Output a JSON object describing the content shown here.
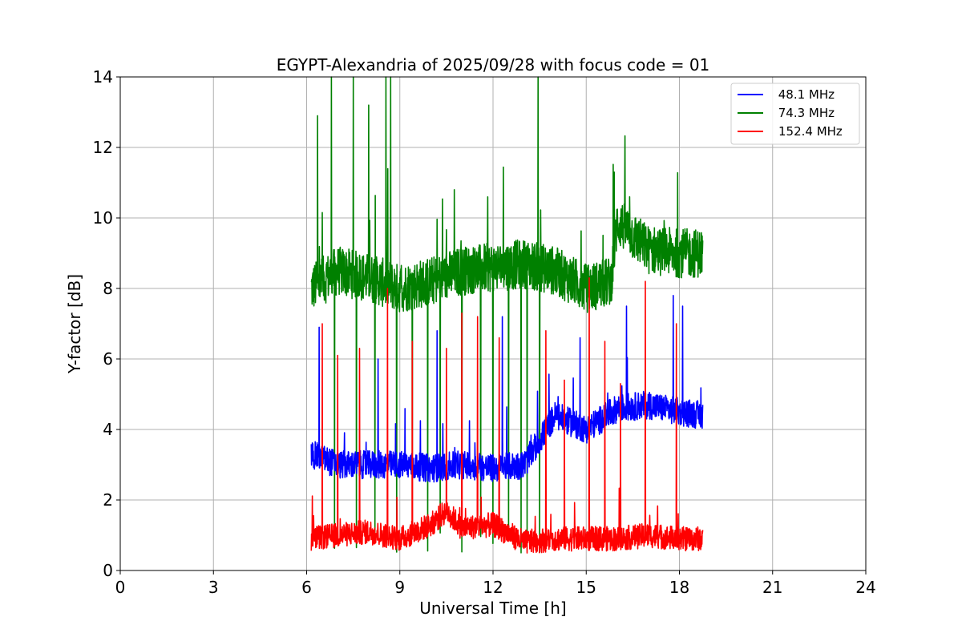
{
  "chart_data": {
    "type": "line",
    "title": "EGYPT-Alexandria of 2025/09/28 with focus code = 01",
    "xlabel": "Universal Time [h]",
    "ylabel": "Y-factor [dB]",
    "xlim": [
      0,
      24
    ],
    "ylim": [
      0,
      14
    ],
    "xticks": [
      0,
      3,
      6,
      9,
      12,
      15,
      18,
      21,
      24
    ],
    "yticks": [
      0,
      2,
      4,
      6,
      8,
      10,
      12,
      14
    ],
    "grid": true,
    "legend_position": "top-right",
    "data_span_hours": [
      6.15,
      18.75
    ],
    "series": [
      {
        "name": " 48.1 MHz",
        "color": "#0000ff",
        "baseline": [
          [
            6.15,
            3.3
          ],
          [
            7.0,
            3.0
          ],
          [
            8.0,
            3.0
          ],
          [
            9.0,
            3.0
          ],
          [
            10.0,
            2.9
          ],
          [
            11.0,
            3.0
          ],
          [
            12.0,
            2.9
          ],
          [
            13.0,
            3.0
          ],
          [
            14.0,
            4.4
          ],
          [
            15.0,
            4.0
          ],
          [
            16.0,
            4.6
          ],
          [
            17.0,
            4.7
          ],
          [
            18.0,
            4.5
          ],
          [
            18.75,
            4.4
          ]
        ],
        "noise": 0.4,
        "spikes": [
          [
            6.4,
            6.9
          ],
          [
            8.3,
            6.0
          ],
          [
            10.2,
            6.8
          ],
          [
            12.3,
            7.2
          ],
          [
            14.8,
            6.6
          ],
          [
            16.3,
            7.5
          ],
          [
            17.8,
            7.8
          ],
          [
            18.1,
            7.5
          ]
        ]
      },
      {
        "name": " 74.3 MHz",
        "color": "#008000",
        "baseline": [
          [
            6.15,
            8.0
          ],
          [
            7.0,
            8.5
          ],
          [
            8.0,
            8.3
          ],
          [
            9.0,
            8.0
          ],
          [
            10.0,
            8.2
          ],
          [
            11.0,
            8.5
          ],
          [
            12.0,
            8.6
          ],
          [
            13.0,
            8.7
          ],
          [
            14.0,
            8.5
          ],
          [
            15.0,
            8.0
          ],
          [
            15.8,
            8.2
          ],
          [
            16.0,
            9.9
          ],
          [
            17.0,
            9.1
          ],
          [
            18.0,
            9.0
          ],
          [
            18.75,
            9.0
          ]
        ],
        "noise": 0.7,
        "spikes": [
          [
            6.35,
            12.9
          ],
          [
            6.8,
            14.0
          ],
          [
            7.5,
            14.0
          ],
          [
            8.0,
            13.2
          ],
          [
            8.2,
            13.5
          ],
          [
            8.55,
            14.0
          ],
          [
            8.7,
            14.0
          ],
          [
            10.75,
            10.8
          ],
          [
            13.45,
            14.0
          ],
          [
            15.9,
            11.3
          ],
          [
            16.4,
            10.6
          ]
        ],
        "dips": [
          6.9,
          7.6,
          8.2,
          8.9,
          9.4,
          9.9,
          10.3,
          11.0,
          11.6,
          12.0,
          12.5,
          12.9,
          13.1,
          13.5
        ]
      },
      {
        "name": "152.4 MHz",
        "color": "#ff0000",
        "baseline": [
          [
            6.15,
            0.9
          ],
          [
            7.0,
            1.0
          ],
          [
            8.0,
            1.1
          ],
          [
            9.0,
            0.9
          ],
          [
            10.0,
            1.3
          ],
          [
            10.5,
            1.7
          ],
          [
            11.0,
            1.2
          ],
          [
            12.0,
            1.3
          ],
          [
            13.0,
            0.8
          ],
          [
            14.0,
            0.9
          ],
          [
            15.0,
            0.9
          ],
          [
            16.0,
            0.9
          ],
          [
            17.0,
            1.0
          ],
          [
            18.0,
            0.9
          ],
          [
            18.75,
            0.9
          ]
        ],
        "noise": 0.35,
        "spikes": [
          [
            6.5,
            7.0
          ],
          [
            7.0,
            6.1
          ],
          [
            7.7,
            6.3
          ],
          [
            8.6,
            8.0
          ],
          [
            9.4,
            6.5
          ],
          [
            10.5,
            6.3
          ],
          [
            11.0,
            7.3
          ],
          [
            11.5,
            7.2
          ],
          [
            12.2,
            6.6
          ],
          [
            13.7,
            6.8
          ],
          [
            14.3,
            5.4
          ],
          [
            15.1,
            8.3
          ],
          [
            15.6,
            6.5
          ],
          [
            16.1,
            5.3
          ],
          [
            16.9,
            8.2
          ],
          [
            17.9,
            7.0
          ]
        ]
      }
    ]
  }
}
